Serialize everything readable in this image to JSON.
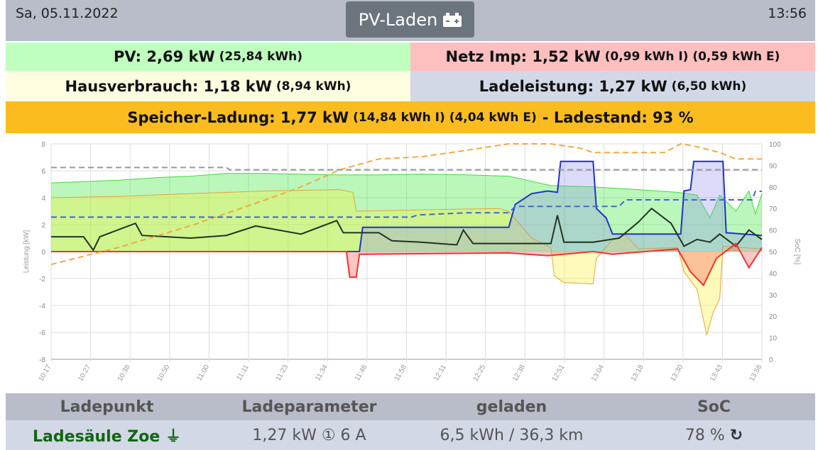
{
  "header": {
    "date": "Sa, 05.11.2022",
    "time": "13:56",
    "mode_button": "PV-Laden",
    "mode_icon": "car-battery-icon"
  },
  "summary": {
    "pv": {
      "main": "PV: 2,69 kW",
      "sub": "(25,84 kWh)",
      "color": "#bfffbf"
    },
    "grid": {
      "main": "Netz Imp: 1,52 kW",
      "sub": "(0,99 kWh I) (0,59 kWh E)",
      "color": "#ffbfbf"
    },
    "house": {
      "main": "Hausverbrauch: 1,18 kW",
      "sub": "(8,94 kWh)",
      "color": "#fffde0"
    },
    "charge": {
      "main": "Ladeleistung: 1,27 kW",
      "sub": "(6,50 kWh)",
      "color": "#d2d8e6"
    },
    "storage": {
      "main": "Speicher-Ladung: 1,77 kW",
      "sub": "(14,84 kWh I) (4,04 kWh E)",
      "suffix": "- Ladestand: 93 %",
      "color": "#fbbc1f"
    }
  },
  "chart_data": {
    "type": "line",
    "ylabel": "Leistung [kW]",
    "y2label": "SoC [%]",
    "ylim": [
      -8,
      8
    ],
    "y2lim": [
      0,
      100
    ],
    "grid": true,
    "yticks": [
      "8",
      "6",
      "4",
      "2",
      "0",
      "-2",
      "-4",
      "-6",
      "-8"
    ],
    "y2ticks": [
      "100",
      "90",
      "80",
      "70",
      "60",
      "50",
      "40",
      "30",
      "20",
      "10",
      "0"
    ],
    "xticks": [
      "10:17",
      "10:27",
      "10:38",
      "10:50",
      "11:00",
      "11:11",
      "11:23",
      "11:34",
      "11:46",
      "11:58",
      "12:11",
      "12:25",
      "12:38",
      "12:51",
      "13:04",
      "13:18",
      "13:30",
      "13:43",
      "13:56"
    ],
    "series": [
      {
        "id": "pv",
        "axis": "left",
        "color": "#3ddc3d",
        "fill": "rgba(60,230,60,0.35)",
        "dash": false,
        "points": [
          [
            "10:17",
            5.1
          ],
          [
            "10:27",
            5.2
          ],
          [
            "10:38",
            5.3
          ],
          [
            "10:50",
            5.5
          ],
          [
            "11:00",
            5.6
          ],
          [
            "11:11",
            5.8
          ],
          [
            "11:23",
            5.8
          ],
          [
            "11:34",
            5.75
          ],
          [
            "11:46",
            5.7
          ],
          [
            "11:58",
            5.7
          ],
          [
            "12:11",
            5.75
          ],
          [
            "12:25",
            5.7
          ],
          [
            "12:38",
            5.6
          ],
          [
            "12:51",
            4.9
          ],
          [
            "13:04",
            4.8
          ],
          [
            "13:18",
            4.6
          ],
          [
            "13:30",
            4.4
          ],
          [
            "13:36",
            4.2
          ],
          [
            "13:40",
            2.5
          ],
          [
            "13:43",
            4.2
          ],
          [
            "13:48",
            3.0
          ],
          [
            "13:52",
            4.5
          ],
          [
            "13:54",
            2.8
          ],
          [
            "13:56",
            4.3
          ]
        ]
      },
      {
        "id": "storage",
        "axis": "left",
        "color": "#e8a33a",
        "fill": "rgba(250,240,60,0.35)",
        "dash": false,
        "points": [
          [
            "10:17",
            4.0
          ],
          [
            "10:38",
            4.1
          ],
          [
            "11:00",
            4.3
          ],
          [
            "11:23",
            4.5
          ],
          [
            "11:46",
            4.6
          ],
          [
            "11:50",
            4.4
          ],
          [
            "11:51",
            3.0
          ],
          [
            "12:11",
            3.1
          ],
          [
            "12:35",
            3.2
          ],
          [
            "12:38",
            3.0
          ],
          [
            "12:45",
            1.0
          ],
          [
            "12:51",
            0.3
          ],
          [
            "12:52",
            -1.8
          ],
          [
            "12:55",
            -2.3
          ],
          [
            "13:04",
            -2.4
          ],
          [
            "13:05",
            -0.5
          ],
          [
            "13:10",
            0.9
          ],
          [
            "13:14",
            1.2
          ],
          [
            "13:18",
            0.2
          ],
          [
            "13:30",
            0.3
          ],
          [
            "13:32",
            -1.5
          ],
          [
            "13:36",
            -2.8
          ],
          [
            "13:39",
            -6.2
          ],
          [
            "13:41",
            -4.5
          ],
          [
            "13:43",
            -3.5
          ],
          [
            "13:44",
            0.4
          ],
          [
            "13:56",
            0.2
          ]
        ]
      },
      {
        "id": "charging",
        "axis": "left",
        "color": "#2233cc",
        "fill": "rgba(140,140,240,0.3)",
        "dash": false,
        "points": [
          [
            "10:17",
            0
          ],
          [
            "11:52",
            0
          ],
          [
            "11:53",
            1.8
          ],
          [
            "12:38",
            1.8
          ],
          [
            "12:40",
            3.5
          ],
          [
            "12:45",
            4.3
          ],
          [
            "12:50",
            4.5
          ],
          [
            "12:53",
            4.4
          ],
          [
            "12:54",
            6.7
          ],
          [
            "13:04",
            6.7
          ],
          [
            "13:05",
            3.2
          ],
          [
            "13:08",
            2.5
          ],
          [
            "13:10",
            1.3
          ],
          [
            "13:31",
            1.3
          ],
          [
            "13:32",
            4.5
          ],
          [
            "13:34",
            4.6
          ],
          [
            "13:35",
            6.7
          ],
          [
            "13:44",
            6.7
          ],
          [
            "13:45",
            1.4
          ],
          [
            "13:56",
            1.2
          ]
        ]
      },
      {
        "id": "house",
        "axis": "left",
        "color": "#223322",
        "fill": null,
        "dash": false,
        "points": [
          [
            "10:17",
            1.1
          ],
          [
            "10:27",
            1.1
          ],
          [
            "10:30",
            0.1
          ],
          [
            "10:32",
            1.1
          ],
          [
            "10:43",
            2.1
          ],
          [
            "10:45",
            1.2
          ],
          [
            "11:00",
            1.0
          ],
          [
            "11:11",
            1.2
          ],
          [
            "11:20",
            1.9
          ],
          [
            "11:34",
            1.3
          ],
          [
            "11:45",
            2.3
          ],
          [
            "11:47",
            1.4
          ],
          [
            "11:58",
            1.4
          ],
          [
            "12:02",
            0.8
          ],
          [
            "12:11",
            0.7
          ],
          [
            "12:22",
            0.5
          ],
          [
            "12:24",
            1.6
          ],
          [
            "12:27",
            0.6
          ],
          [
            "12:38",
            0.6
          ],
          [
            "12:51",
            0.6
          ],
          [
            "12:53",
            2.7
          ],
          [
            "12:55",
            0.7
          ],
          [
            "13:04",
            0.7
          ],
          [
            "13:12",
            1.0
          ],
          [
            "13:18",
            2.2
          ],
          [
            "13:22",
            3.2
          ],
          [
            "13:28",
            2.1
          ],
          [
            "13:32",
            0.4
          ],
          [
            "13:36",
            0.9
          ],
          [
            "13:40",
            0.7
          ],
          [
            "13:43",
            1.3
          ],
          [
            "13:48",
            0.4
          ],
          [
            "13:52",
            1.6
          ],
          [
            "13:56",
            0.9
          ]
        ]
      },
      {
        "id": "grid",
        "axis": "left",
        "color": "#e33",
        "fill": "rgba(255,90,90,0.35)",
        "dash": false,
        "points": [
          [
            "10:17",
            0
          ],
          [
            "11:48",
            0
          ],
          [
            "11:49",
            -1.9
          ],
          [
            "11:51",
            -1.9
          ],
          [
            "11:52",
            -0.2
          ],
          [
            "12:38",
            -0.1
          ],
          [
            "12:50",
            -0.3
          ],
          [
            "13:04",
            0
          ],
          [
            "13:10",
            -0.2
          ],
          [
            "13:30",
            0.2
          ],
          [
            "13:34",
            -1.5
          ],
          [
            "13:38",
            -2.5
          ],
          [
            "13:42",
            -0.5
          ],
          [
            "13:48",
            0.6
          ],
          [
            "13:52",
            -1.2
          ],
          [
            "13:56",
            0.3
          ]
        ]
      },
      {
        "id": "soc-storage",
        "axis": "right",
        "color": "#f5a742",
        "fill": null,
        "dash": true,
        "points": [
          [
            "10:17",
            44
          ],
          [
            "10:38",
            52
          ],
          [
            "11:00",
            62
          ],
          [
            "11:23",
            74
          ],
          [
            "11:34",
            80
          ],
          [
            "11:46",
            88
          ],
          [
            "11:58",
            93
          ],
          [
            "12:11",
            94
          ],
          [
            "12:25",
            97
          ],
          [
            "12:38",
            100
          ],
          [
            "12:51",
            100
          ],
          [
            "13:00",
            98
          ],
          [
            "13:04",
            96
          ],
          [
            "13:26",
            96
          ],
          [
            "13:31",
            100
          ],
          [
            "13:35",
            99
          ],
          [
            "13:43",
            96
          ],
          [
            "13:48",
            93
          ],
          [
            "13:56",
            93
          ]
        ]
      },
      {
        "id": "soc-ev",
        "axis": "right",
        "color": "#4466cc",
        "fill": null,
        "dash": true,
        "points": [
          [
            "10:17",
            66
          ],
          [
            "12:08",
            66
          ],
          [
            "12:10",
            67
          ],
          [
            "12:25",
            68
          ],
          [
            "12:38",
            68
          ],
          [
            "12:40",
            71
          ],
          [
            "13:12",
            71
          ],
          [
            "13:14",
            74
          ],
          [
            "13:53",
            74
          ],
          [
            "13:54",
            78
          ],
          [
            "13:56",
            78
          ]
        ]
      },
      {
        "id": "soc-target",
        "axis": "right",
        "color": "#999",
        "fill": null,
        "dash": true,
        "points": [
          [
            "10:17",
            89
          ],
          [
            "11:11",
            89
          ],
          [
            "11:12",
            88
          ],
          [
            "13:56",
            88
          ]
        ]
      }
    ]
  },
  "table": {
    "headers": [
      "Ladepunkt",
      "Ladeparameter",
      "geladen",
      "SoC"
    ],
    "rows": [
      {
        "name": "Ladesäule Zoe",
        "name_icon": "plug-icon",
        "params": "1,27 kW ① 6 A",
        "charged": "6,5 kWh / 36,3 km",
        "soc": "78 %",
        "soc_icon": "refresh-icon"
      }
    ]
  }
}
